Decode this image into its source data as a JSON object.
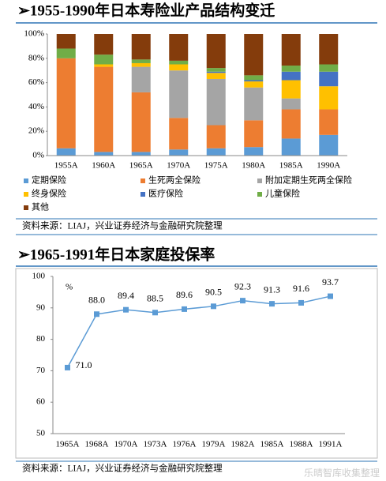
{
  "chart_data": [
    {
      "type": "stacked_bar",
      "title": "➢1955-1990年日本寿险业产品结构变迁",
      "categories": [
        "1955A",
        "1960A",
        "1965A",
        "1970A",
        "1975A",
        "1980A",
        "1985A",
        "1990A"
      ],
      "series": [
        {
          "name": "定期保险",
          "color": "#5b9bd5",
          "values": [
            6,
            3,
            3,
            5,
            6,
            7,
            14,
            17
          ]
        },
        {
          "name": "生死两全保险",
          "color": "#ed7d31",
          "values": [
            74,
            70,
            49,
            26,
            19,
            22,
            24,
            21
          ]
        },
        {
          "name": "附加定期生死两全保险",
          "color": "#a5a5a5",
          "values": [
            0,
            0,
            21,
            39,
            38,
            27,
            9,
            0
          ]
        },
        {
          "name": "终身保险",
          "color": "#ffc000",
          "values": [
            0,
            2,
            3,
            5,
            5,
            5,
            15,
            19
          ]
        },
        {
          "name": "医疗保险",
          "color": "#4472c4",
          "values": [
            0,
            0,
            0,
            0,
            1,
            1,
            7,
            12
          ]
        },
        {
          "name": "儿童保险",
          "color": "#70ad47",
          "values": [
            8,
            8,
            3,
            3,
            3,
            4,
            5,
            6
          ]
        },
        {
          "name": "其他",
          "color": "#843c0c",
          "values": [
            12,
            17,
            21,
            22,
            28,
            34,
            26,
            25
          ]
        }
      ],
      "ylim": [
        0,
        100
      ],
      "yticks": [
        {
          "value": 0,
          "label": "0%"
        },
        {
          "value": 20,
          "label": "20%"
        },
        {
          "value": 40,
          "label": "40%"
        },
        {
          "value": 60,
          "label": "60%"
        },
        {
          "value": 80,
          "label": "80%"
        },
        {
          "value": 100,
          "label": "100%"
        }
      ],
      "source": "资料来源：LIAJ，兴业证券经济与金融研究院整理"
    },
    {
      "type": "line",
      "title": "➢1965-1991年日本家庭投保率",
      "unit_label": "%",
      "categories": [
        "1965A",
        "1968A",
        "1970A",
        "1973A",
        "1976A",
        "1979A",
        "1982A",
        "1985A",
        "1988A",
        "1991A"
      ],
      "values": [
        71.0,
        88.0,
        89.4,
        88.5,
        89.6,
        90.5,
        92.3,
        91.3,
        91.6,
        93.7
      ],
      "value_labels": [
        "71.0",
        "88.0",
        "89.4",
        "88.5",
        "89.6",
        "90.5",
        "92.3",
        "91.3",
        "91.6",
        "93.7"
      ],
      "color": "#5b9bd5",
      "ylim": [
        50,
        100
      ],
      "yticks": [
        50,
        60,
        70,
        80,
        90,
        100
      ],
      "source": "资料来源：LIAJ，兴业证券经济与金融研究院整理"
    }
  ],
  "watermark": "乐晴智库收集整理"
}
